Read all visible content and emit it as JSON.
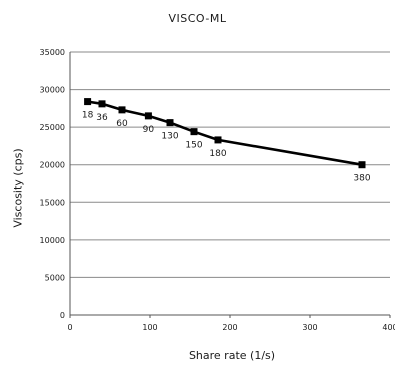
{
  "chart_data": {
    "type": "line",
    "title": "VISCO-ML",
    "xlabel": "Share rate (1/s)",
    "ylabel": "Viscosity (cps)",
    "xlim": [
      0,
      400
    ],
    "ylim": [
      0,
      35000
    ],
    "x_ticks": [
      "0",
      "100",
      "200",
      "300",
      "400"
    ],
    "y_ticks": [
      "0",
      "5000",
      "10000",
      "15000",
      "20000",
      "25000",
      "30000",
      "35000"
    ],
    "grid": "horizontal",
    "series": [
      {
        "color": "#000000",
        "marker": "square",
        "x": [
          22,
          40,
          65,
          98,
          125,
          155,
          185,
          365
        ],
        "y": [
          28400,
          28100,
          27300,
          26500,
          25600,
          24400,
          23300,
          20000
        ],
        "labels": [
          "18",
          "36",
          "60",
          "90",
          "130",
          "150",
          "180",
          "380"
        ]
      }
    ]
  }
}
